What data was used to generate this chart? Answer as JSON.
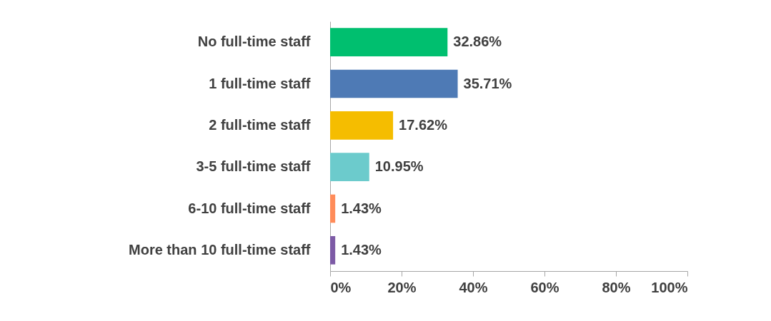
{
  "chart_data": {
    "type": "bar",
    "orientation": "horizontal",
    "categories": [
      "No full-time staff",
      "1 full-time staff",
      "2 full-time staff",
      "3-5 full-time staff",
      "6-10 full-time staff",
      "More than 10 full-time staff"
    ],
    "values": [
      32.86,
      35.71,
      17.62,
      10.95,
      1.43,
      1.43
    ],
    "colors": [
      "#00bf6f",
      "#4e7ab5",
      "#f5bd00",
      "#6ccbcc",
      "#ff8c5a",
      "#7d5ba6"
    ],
    "value_labels": [
      "32.86%",
      "35.71%",
      "17.62%",
      "10.95%",
      "1.43%",
      "1.43%"
    ],
    "xlim": [
      0,
      100
    ],
    "xticks": [
      {
        "value": 0,
        "label": "0%"
      },
      {
        "value": 20,
        "label": "20%"
      },
      {
        "value": 40,
        "label": "40%"
      },
      {
        "value": 60,
        "label": "60%"
      },
      {
        "value": 80,
        "label": "80%"
      },
      {
        "value": 100,
        "label": "100%"
      }
    ]
  }
}
